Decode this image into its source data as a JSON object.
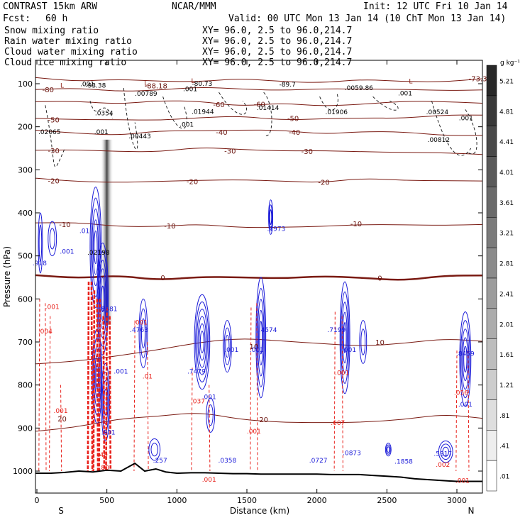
{
  "header": {
    "model": "CONTRAST 15km ARW",
    "org": "NCAR/MMM",
    "init": "Init: 12 UTC Fri 10 Jan 14",
    "fcst_label": "Fcst:",
    "fcst_value": "60 h",
    "valid": "Valid: 00 UTC Mon 13 Jan 14 (10 ChT Mon 13 Jan 14)"
  },
  "legend": [
    {
      "name": "Snow mixing ratio",
      "color": "#000000",
      "xy": "XY=  96.0,  2.5 to  96.0,214.7"
    },
    {
      "name": "Rain water mixing ratio",
      "color": "#e8201a",
      "xy": "XY=  96.0,  2.5 to  96.0,214.7"
    },
    {
      "name": "Cloud water mixing ratio",
      "color": "#1a1ad8",
      "xy": "XY=  96.0,  2.5 to  96.0,214.7"
    },
    {
      "name": "Cloud ice mixing ratio",
      "color": "#000000",
      "xy": "XY=  96.0,  2.5 to  96.0,214.7"
    }
  ],
  "colorbar": {
    "unit": "g kg⁻¹",
    "labels": [
      "5.21",
      "4.81",
      "4.41",
      "4.01",
      "3.61",
      "3.21",
      "2.81",
      "2.41",
      "2.01",
      "1.61",
      "1.21",
      ".81",
      ".41",
      ".01"
    ]
  },
  "chart_data": {
    "type": "cross-section",
    "xlabel": "Distance (km)",
    "ylabel": "Pressure (hPa)",
    "xlim": [
      0,
      3200
    ],
    "ylim": [
      1050,
      50
    ],
    "xticks": [
      0,
      500,
      1000,
      1500,
      2000,
      2500,
      3000
    ],
    "yticks": [
      100,
      200,
      300,
      400,
      500,
      600,
      700,
      800,
      900,
      1000
    ],
    "x_end_labels": {
      "left": "S",
      "right": "N"
    },
    "temperature_contours": [
      {
        "value": -80,
        "y": [
          111,
          112,
          118,
          113,
          110,
          111,
          115,
          114,
          110,
          114,
          117,
          112
        ],
        "label_x": 80
      },
      {
        "value": -70,
        "y": [
          88,
          92,
          91,
          95,
          93,
          90,
          94,
          97,
          92,
          93,
          96,
          90
        ],
        "label_x": 3150
      },
      {
        "value": -60,
        "y": [
          141,
          143,
          145,
          140,
          142,
          150,
          147,
          152,
          146,
          143,
          140,
          145
        ],
        "label_x": 1300
      },
      {
        "value": -50,
        "y": [
          180,
          182,
          186,
          183,
          179,
          177,
          182,
          183,
          180,
          178,
          175,
          172
        ],
        "label_x": 1830
      },
      {
        "value": -40,
        "y": [
          210,
          215,
          218,
          212,
          208,
          207,
          210,
          215,
          212,
          213,
          218,
          222
        ],
        "label_x": 1840
      },
      {
        "value": -30,
        "y": [
          252,
          255,
          258,
          256,
          250,
          252,
          255,
          258,
          256,
          260,
          262,
          262
        ],
        "label_x": 1930
      },
      {
        "value": -20,
        "y": [
          322,
          325,
          330,
          328,
          322,
          325,
          326,
          328,
          322,
          323,
          325,
          328
        ],
        "label_x": 2050
      },
      {
        "value": -10,
        "y": [
          422,
          425,
          430,
          432,
          428,
          432,
          435,
          432,
          425,
          430,
          428,
          426
        ],
        "label_x": 950
      },
      {
        "value": 0,
        "y": [
          545,
          550,
          548,
          555,
          548,
          552,
          550,
          548,
          552,
          555,
          548,
          545
        ],
        "label_x": 900
      },
      {
        "value": 10,
        "y": [
          752,
          745,
          730,
          720,
          700,
          690,
          700,
          702,
          710,
          705,
          690,
          700
        ],
        "label_x": 2450
      },
      {
        "value": 20,
        "y": [
          905,
          898,
          880,
          870,
          865,
          880,
          885,
          890,
          885,
          880,
          870,
          875
        ],
        "label_x": 1620
      }
    ],
    "temperature_labels": [
      {
        "text": "-80",
        "x": 80,
        "p": 113
      },
      {
        "text": "-73.3",
        "x": 3150,
        "p": 88
      },
      {
        "text": "-88.18",
        "x": 850,
        "p": 104
      },
      {
        "text": "-60",
        "x": 1300,
        "p": 148
      },
      {
        "text": "-60",
        "x": 1590,
        "p": 147
      },
      {
        "text": "-50",
        "x": 120,
        "p": 183
      },
      {
        "text": "-50",
        "x": 1830,
        "p": 180
      },
      {
        "text": "-40",
        "x": 1320,
        "p": 212
      },
      {
        "text": "-40",
        "x": 1840,
        "p": 212
      },
      {
        "text": "-30",
        "x": 120,
        "p": 255
      },
      {
        "text": "-30",
        "x": 1380,
        "p": 256
      },
      {
        "text": "-30",
        "x": 1930,
        "p": 257
      },
      {
        "text": "-20",
        "x": 120,
        "p": 325
      },
      {
        "text": "-20",
        "x": 1110,
        "p": 327
      },
      {
        "text": "-20",
        "x": 2050,
        "p": 328
      },
      {
        "text": "-10",
        "x": 200,
        "p": 426
      },
      {
        "text": "-10",
        "x": 950,
        "p": 430
      },
      {
        "text": "-10",
        "x": 2280,
        "p": 425
      },
      {
        "text": "0",
        "x": 900,
        "p": 550
      },
      {
        "text": "0",
        "x": 2450,
        "p": 551
      },
      {
        "text": "10",
        "x": 1550,
        "p": 710
      },
      {
        "text": "10",
        "x": 2450,
        "p": 700
      },
      {
        "text": "20",
        "x": 180,
        "p": 878
      },
      {
        "text": "20",
        "x": 1620,
        "p": 880
      }
    ],
    "point_labels": [
      {
        "text": "L",
        "x": 180,
        "p": 104,
        "color": "#8a1c12"
      },
      {
        "text": ".001",
        "x": 360,
        "p": 101,
        "color": "#000"
      },
      {
        "text": "-93.38",
        "x": 420,
        "p": 104,
        "color": "#000"
      },
      {
        "text": "L",
        "x": 780,
        "p": 99,
        "color": "#8a1c12"
      },
      {
        "text": "L",
        "x": 1115,
        "p": 93,
        "color": "#8a1c12"
      },
      {
        "text": "-80.73",
        "x": 1180,
        "p": 100,
        "color": "#000"
      },
      {
        "text": ".00789",
        "x": 780,
        "p": 123,
        "color": "#000"
      },
      {
        "text": ".001",
        "x": 1095,
        "p": 112,
        "color": "#000"
      },
      {
        "text": "-89.7",
        "x": 1790,
        "p": 102,
        "color": "#000"
      },
      {
        "text": ".0059.86",
        "x": 2300,
        "p": 110,
        "color": "#000"
      },
      {
        "text": "L",
        "x": 2670,
        "p": 94,
        "color": "#8a1c12"
      },
      {
        "text": ".001",
        "x": 2630,
        "p": 122,
        "color": "#000"
      },
      {
        "text": ".0354",
        "x": 480,
        "p": 168,
        "color": "#000"
      },
      {
        "text": ".01944",
        "x": 1185,
        "p": 165,
        "color": "#000"
      },
      {
        "text": ".01414",
        "x": 1650,
        "p": 156,
        "color": "#000"
      },
      {
        "text": ".01906",
        "x": 2140,
        "p": 166,
        "color": "#000"
      },
      {
        "text": ".00524",
        "x": 2860,
        "p": 166,
        "color": "#000"
      },
      {
        "text": ".001",
        "x": 1070,
        "p": 195,
        "color": "#000"
      },
      {
        "text": ".02065",
        "x": 90,
        "p": 212,
        "color": "#000"
      },
      {
        "text": ".001",
        "x": 460,
        "p": 212,
        "color": "#000"
      },
      {
        "text": ".00443",
        "x": 735,
        "p": 222,
        "color": "#000"
      },
      {
        "text": ".00812",
        "x": 2870,
        "p": 230,
        "color": "#000"
      },
      {
        "text": ".001",
        "x": 3065,
        "p": 180,
        "color": "#000"
      },
      {
        "text": ".1973",
        "x": 1710,
        "p": 437,
        "color": "#1a1ad8"
      },
      {
        "text": ".001",
        "x": 215,
        "p": 490,
        "color": "#1a1ad8"
      },
      {
        "text": ".01",
        "x": 340,
        "p": 442,
        "color": "#1a1ad8"
      },
      {
        "text": ".02198",
        "x": 440,
        "p": 492,
        "color": "#000"
      },
      {
        "text": ".918",
        "x": 20,
        "p": 517,
        "color": "#1a1ad8"
      },
      {
        "text": ".001",
        "x": 110,
        "p": 618,
        "color": "#e8201a"
      },
      {
        "text": ".004",
        "x": 60,
        "p": 675,
        "color": "#e8201a"
      },
      {
        "text": ".8681",
        "x": 510,
        "p": 623,
        "color": "#1a1ad8"
      },
      {
        "text": ".4763",
        "x": 730,
        "p": 672,
        "color": "#1a1ad8"
      },
      {
        "text": ".001",
        "x": 740,
        "p": 655,
        "color": "#e8201a"
      },
      {
        "text": ".4574",
        "x": 1650,
        "p": 672,
        "color": "#1a1ad8"
      },
      {
        "text": ".7199",
        "x": 2140,
        "p": 672,
        "color": "#1a1ad8"
      },
      {
        "text": ".001",
        "x": 1390,
        "p": 718,
        "color": "#1a1ad8"
      },
      {
        "text": ".001",
        "x": 1570,
        "p": 718,
        "color": "#1a1ad8"
      },
      {
        "text": ".001",
        "x": 2230,
        "p": 718,
        "color": "#1a1ad8"
      },
      {
        "text": ".7479",
        "x": 1140,
        "p": 768,
        "color": "#1a1ad8"
      },
      {
        "text": ".8459",
        "x": 3060,
        "p": 727,
        "color": "#1a1ad8"
      },
      {
        "text": ".001",
        "x": 600,
        "p": 768,
        "color": "#1a1ad8"
      },
      {
        "text": ".01",
        "x": 790,
        "p": 780,
        "color": "#e8201a"
      },
      {
        "text": ".001",
        "x": 2180,
        "p": 772,
        "color": "#e8201a"
      },
      {
        "text": ".001",
        "x": 1230,
        "p": 828,
        "color": "#1a1ad8"
      },
      {
        "text": ".037",
        "x": 1150,
        "p": 838,
        "color": "#e8201a"
      },
      {
        "text": ".056",
        "x": 3030,
        "p": 818,
        "color": "#e8201a"
      },
      {
        "text": ".001",
        "x": 3060,
        "p": 845,
        "color": "#1a1ad8"
      },
      {
        "text": ".001",
        "x": 170,
        "p": 860,
        "color": "#e8201a"
      },
      {
        "text": ".007",
        "x": 2150,
        "p": 888,
        "color": "#e8201a"
      },
      {
        "text": ".001",
        "x": 1550,
        "p": 908,
        "color": "#e8201a"
      },
      {
        "text": ".901",
        "x": 510,
        "p": 910,
        "color": "#1a1ad8"
      },
      {
        "text": ".257",
        "x": 880,
        "p": 975,
        "color": "#1a1ad8"
      },
      {
        "text": ".0358",
        "x": 1360,
        "p": 975,
        "color": "#1a1ad8"
      },
      {
        "text": ".0727",
        "x": 2010,
        "p": 975,
        "color": "#1a1ad8"
      },
      {
        "text": ".0873",
        "x": 2250,
        "p": 958,
        "color": "#1a1ad8"
      },
      {
        "text": ".1858",
        "x": 2620,
        "p": 978,
        "color": "#1a1ad8"
      },
      {
        "text": ".5917",
        "x": 2900,
        "p": 960,
        "color": "#1a1ad8"
      },
      {
        "text": ".002",
        "x": 2900,
        "p": 985,
        "color": "#e8201a"
      },
      {
        "text": ".001",
        "x": 1230,
        "p": 1020,
        "color": "#e8201a"
      },
      {
        "text": ".001",
        "x": 3040,
        "p": 1022,
        "color": "#e8201a"
      },
      {
        "text": ".40",
        "x": 470,
        "p": 962,
        "color": "#e8201a"
      },
      {
        "text": ".80",
        "x": 480,
        "p": 992,
        "color": "#e8201a"
      }
    ],
    "terrain_p": [
      1005,
      1005,
      1003,
      1000,
      1002,
      998,
      1000,
      982,
      1000,
      995,
      1002,
      1005,
      1004,
      1004,
      1005,
      1006,
      1006,
      1007,
      1007,
      1007,
      1007,
      1007,
      1008,
      1008,
      1008,
      1010,
      1012,
      1014,
      1018,
      1020,
      1022,
      1024,
      1024
    ],
    "terrain_x": [
      0,
      100,
      200,
      300,
      400,
      500,
      600,
      700,
      770,
      850,
      920,
      1000,
      1100,
      1200,
      1300,
      1400,
      1500,
      1600,
      1700,
      1800,
      1900,
      2000,
      2100,
      2200,
      2300,
      2400,
      2500,
      2600,
      2700,
      2800,
      2900,
      3000,
      3200
    ]
  }
}
